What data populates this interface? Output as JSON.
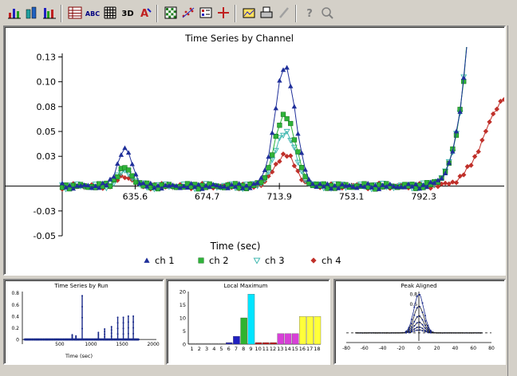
{
  "toolbar": {
    "buttons": [
      {
        "name": "bar-chart-icon",
        "group": 0
      },
      {
        "name": "bar-chart-3d-icon",
        "group": 0
      },
      {
        "name": "grouped-bar-icon",
        "group": 0
      },
      {
        "name": "data-table-icon",
        "group": 1
      },
      {
        "name": "abc-label-icon",
        "group": 1
      },
      {
        "name": "grid-icon",
        "group": 1
      },
      {
        "name": "3d-icon",
        "group": 1
      },
      {
        "name": "font-icon",
        "group": 1
      },
      {
        "name": "pattern-icon",
        "group": 2
      },
      {
        "name": "scatter-icon",
        "group": 2
      },
      {
        "name": "legend-icon",
        "group": 2
      },
      {
        "name": "crosshair-icon",
        "group": 2
      },
      {
        "name": "gallery-icon",
        "group": 3
      },
      {
        "name": "print-icon",
        "group": 3
      },
      {
        "name": "pencil-icon",
        "group": 3
      },
      {
        "name": "help-icon",
        "group": 4
      },
      {
        "name": "zoom-icon",
        "group": 4
      }
    ],
    "labels": {
      "abc": "ABC",
      "three_d": "3D",
      "font": "A"
    }
  },
  "chart_data": [
    {
      "id": "main",
      "type": "line",
      "title": "Time Series by Channel",
      "xlabel": "Time (sec)",
      "ylabel": "",
      "xlim": [
        596,
        836
      ],
      "ylim": [
        -0.05,
        0.14
      ],
      "x_ticks": [
        "635.6",
        "674.7",
        "713.9",
        "753.1",
        "792.3"
      ],
      "y_ticks": [
        "0.13",
        "0.10",
        "0.08",
        "0.05",
        "0.03",
        "-0.03",
        "-0.05"
      ],
      "y_tick_values": [
        0.13,
        0.105,
        0.08,
        0.055,
        0.03,
        -0.025,
        -0.05
      ],
      "legend": "bottom",
      "series": [
        {
          "name": "ch 1",
          "color": "#1f2f9a",
          "marker": "triangle-up",
          "amp": [
            0.037,
            0.12,
            0.8
          ]
        },
        {
          "name": "ch 2",
          "color": "#2fb33a",
          "marker": "square",
          "amp": [
            0.018,
            0.072,
            0.8
          ]
        },
        {
          "name": "ch 3",
          "color": "#40b8b0",
          "marker": "triangle-down",
          "amp": [
            0.015,
            0.055,
            0.8
          ]
        },
        {
          "name": "ch 4",
          "color": "#c0302a",
          "marker": "diamond",
          "amp": [
            0.01,
            0.032,
            0.09
          ]
        }
      ],
      "peaks": [
        {
          "center": 630,
          "width": 4
        },
        {
          "center": 717,
          "width": 5.5
        },
        {
          "center": 838,
          "width": 12
        }
      ]
    },
    {
      "id": "run",
      "type": "line",
      "title": "Time Series by Run",
      "xlabel": "Time (sec)",
      "xlim": [
        -100,
        2050
      ],
      "ylim": [
        -0.08,
        0.85
      ],
      "x_ticks": [
        "500",
        "1000",
        "1500",
        "2000"
      ],
      "x_tick_values": [
        500,
        1000,
        1500,
        2000
      ],
      "y_ticks": [
        "0.8",
        "0.6",
        "0.4",
        "0.2",
        "0"
      ],
      "y_tick_values": [
        0.8,
        0.6,
        0.4,
        0.2,
        0
      ],
      "spikes": [
        {
          "x": 700,
          "y": 0.08
        },
        {
          "x": 760,
          "y": 0.06
        },
        {
          "x": 860,
          "y": 0.75
        },
        {
          "x": 1120,
          "y": 0.12
        },
        {
          "x": 1220,
          "y": 0.18
        },
        {
          "x": 1330,
          "y": 0.22
        },
        {
          "x": 1430,
          "y": 0.38
        },
        {
          "x": 1520,
          "y": 0.38
        },
        {
          "x": 1600,
          "y": 0.4
        },
        {
          "x": 1680,
          "y": 0.4
        }
      ]
    },
    {
      "id": "lmax",
      "type": "bar",
      "title": "Local Maximum",
      "categories": [
        "1",
        "2",
        "3",
        "4",
        "5",
        "6",
        "7",
        "8",
        "9",
        "10",
        "11",
        "12",
        "13",
        "14",
        "15",
        "16",
        "17",
        "18"
      ],
      "values": [
        0.3,
        0.3,
        0.3,
        0.3,
        0.3,
        0.6,
        3,
        10,
        19,
        0.6,
        0.6,
        0.6,
        4,
        4,
        4,
        10.5,
        10.5,
        10.5
      ],
      "colors": [
        "#9a9a9a",
        "#9a9a9a",
        "#9a9a9a",
        "#9a9a9a",
        "#9a9a9a",
        "#2b2bb3",
        "#2020c0",
        "#2fb32f",
        "#00e5ff",
        "#c01818",
        "#c01818",
        "#c01818",
        "#d840d8",
        "#d840d8",
        "#d840d8",
        "#ffff3a",
        "#ffff3a",
        "#ffff3a"
      ],
      "ylim": [
        0,
        20
      ],
      "y_ticks": [
        "20",
        "15",
        "10",
        "5",
        "0"
      ],
      "y_tick_values": [
        20,
        15,
        10,
        5,
        0
      ]
    },
    {
      "id": "peak",
      "type": "line",
      "title": "Peak Aligned",
      "xlim": [
        -80,
        80
      ],
      "ylim": [
        -0.1,
        0.85
      ],
      "x_ticks": [
        "-80",
        "-60",
        "-40",
        "-20",
        "0",
        "20",
        "40",
        "60",
        "80"
      ],
      "x_tick_values": [
        -80,
        -60,
        -40,
        -20,
        0,
        20,
        40,
        60,
        80
      ],
      "y_ticks": [
        "0.8",
        "0.6"
      ],
      "y_tick_values": [
        0.8,
        0.6
      ],
      "curve_amps": [
        0.8,
        0.55,
        0.35,
        0.22,
        0.12,
        0.06
      ]
    }
  ]
}
